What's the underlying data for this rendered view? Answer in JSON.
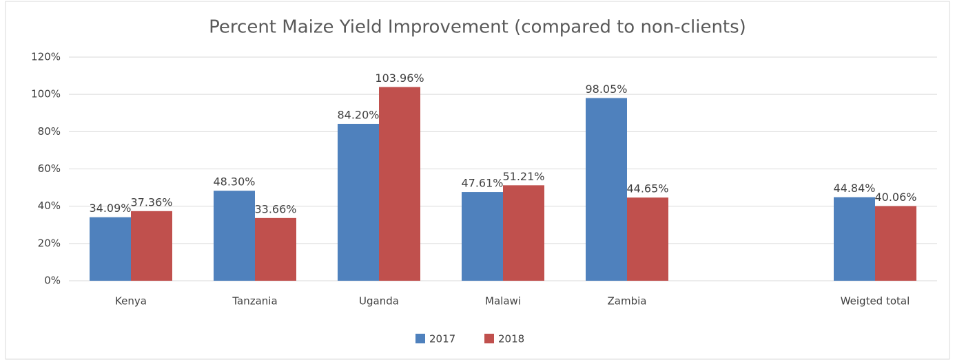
{
  "chart_data": {
    "type": "bar",
    "title": "Percent Maize Yield Improvement (compared to non-clients)",
    "categories": [
      "Kenya",
      "Tanzania",
      "Uganda",
      "Malawi",
      "Zambia",
      null,
      "Weigted total"
    ],
    "series": [
      {
        "name": "2017",
        "color": "#4f81bd",
        "values": [
          34.09,
          48.3,
          84.2,
          47.61,
          98.05,
          null,
          44.84
        ],
        "value_labels": [
          "34.09%",
          "48.30%",
          "84.20%",
          "47.61%",
          "98.05%",
          null,
          "44.84%"
        ]
      },
      {
        "name": "2018",
        "color": "#c0504d",
        "values": [
          37.36,
          33.66,
          103.96,
          51.21,
          44.65,
          null,
          40.06
        ],
        "value_labels": [
          "37.36%",
          "33.66%",
          "103.96%",
          "51.21%",
          "44.65%",
          null,
          "40.06%"
        ]
      }
    ],
    "ylim": [
      0,
      120
    ],
    "yticks": [
      {
        "value": 0,
        "label": "0%"
      },
      {
        "value": 20,
        "label": "20%"
      },
      {
        "value": 40,
        "label": "40%"
      },
      {
        "value": 60,
        "label": "60%"
      },
      {
        "value": 80,
        "label": "80%"
      },
      {
        "value": 100,
        "label": "100%"
      },
      {
        "value": 120,
        "label": "120%"
      }
    ],
    "grid": true,
    "legend": "bottom"
  }
}
